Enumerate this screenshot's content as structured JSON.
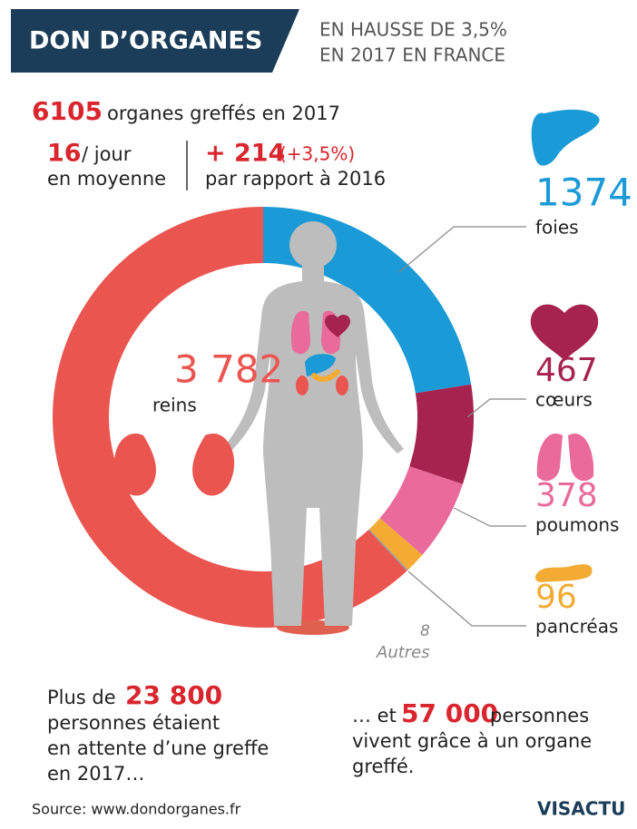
{
  "header": {
    "title": "DON D’ORGANES",
    "subtitle_lines": [
      "EN HAUSSE DE 3,5%",
      "EN 2017 EN FRANCE"
    ]
  },
  "stats": {
    "total": {
      "value": "6105",
      "label": "organes greffés en 2017"
    },
    "per_day": {
      "value": "16",
      "unit": "/ jour",
      "label": "en moyenne"
    },
    "increase": {
      "value": "+ 214",
      "percent": "(+3,5%)",
      "label": "par rapport à 2016"
    }
  },
  "chart_data": {
    "type": "donut",
    "categories": [
      "foies",
      "cœurs",
      "poumons",
      "pancréas",
      "Autres",
      "reins"
    ],
    "values": [
      1374,
      467,
      378,
      96,
      8,
      3782
    ],
    "value_labels": [
      "1374",
      "467",
      "378",
      "96",
      "8",
      "3 782"
    ],
    "colors": [
      "#1a9ad6",
      "#a6224f",
      "#e96a9b",
      "#f4ab34",
      "#9a9a9a",
      "#ea5550"
    ]
  },
  "waiting": {
    "prefix": "Plus de",
    "value": "23 800",
    "lines": [
      "personnes étaient",
      "en attente d’une greffe",
      "en 2017…"
    ]
  },
  "living": {
    "prefix": "… et",
    "value": "57 000",
    "suffix": "personnes",
    "lines": [
      "vivent grâce à un organe",
      "greffé."
    ]
  },
  "footer": {
    "source": "Source: www.dondorganes.fr",
    "logo": "VISACTU"
  }
}
